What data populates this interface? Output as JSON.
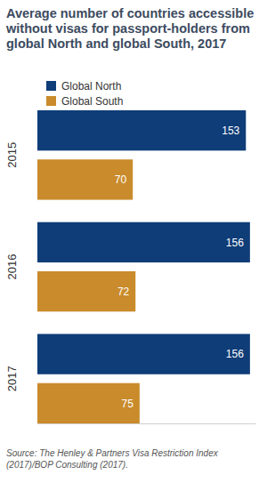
{
  "chart_data": {
    "type": "bar",
    "orientation": "horizontal",
    "title": "Average number of countries accessible without visas for passport-holders from global North and global South, 2017",
    "source": "Source: The Henley & Partners Visa Restriction Index (2017)/BOP Consulting (2017).",
    "categories": [
      "2015",
      "2016",
      "2017"
    ],
    "series": [
      {
        "name": "Global North",
        "color": "#0e3d78",
        "values": [
          153,
          156,
          156
        ]
      },
      {
        "name": "Global South",
        "color": "#c98b2b",
        "values": [
          70,
          72,
          75
        ]
      }
    ],
    "xlim": [
      0,
      160
    ],
    "xticks": [],
    "data_labels": true,
    "tick_labels": "y",
    "grid": false,
    "legend": "top-left"
  }
}
